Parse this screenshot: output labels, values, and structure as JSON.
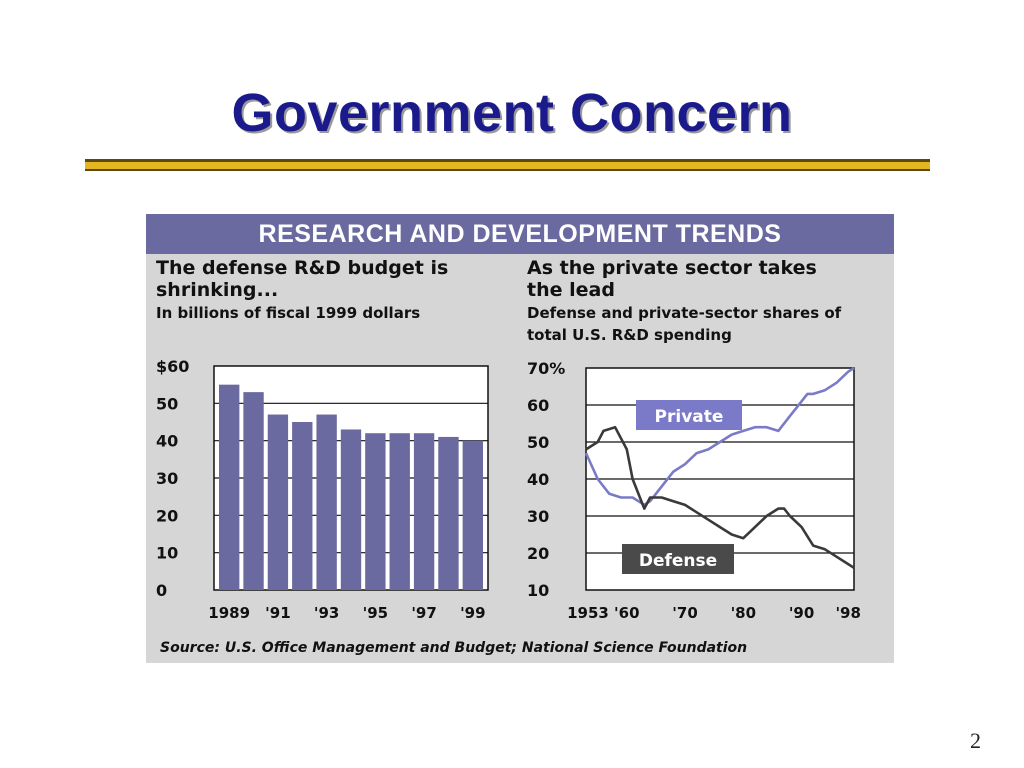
{
  "slide": {
    "title": "Government Concern",
    "page_number": "2"
  },
  "figure": {
    "banner": "RESEARCH AND DEVELOPMENT TRENDS",
    "source": "Source: U.S. Office Management and Budget; National Science Foundation"
  },
  "colors": {
    "title": "#1a1a8c",
    "banner": "#6a6aa0",
    "bars": "#6a6aa0",
    "private": "#7a7ac8",
    "defense": "#3a3a3a",
    "rule_gold": "#e6b622"
  },
  "chart_data": [
    {
      "type": "bar",
      "title": "The defense R&D budget is shrinking...",
      "subtitle": "In billions of fiscal 1999 dollars",
      "categories": [
        "1989",
        "1990",
        "1991",
        "1992",
        "1993",
        "1994",
        "1995",
        "1996",
        "1997",
        "1998",
        "1999"
      ],
      "tick_labels": [
        "1989",
        "'91",
        "'93",
        "'95",
        "'97",
        "'99"
      ],
      "values": [
        55,
        53,
        47,
        45,
        47,
        43,
        42,
        42,
        42,
        41,
        40
      ],
      "yticks": [
        "$60",
        "50",
        "40",
        "30",
        "20",
        "10",
        "0"
      ],
      "ylim": [
        0,
        60
      ],
      "grid": true
    },
    {
      "type": "line",
      "title": "As the private sector takes the lead",
      "subtitle": "Defense and private-sector shares of total U.S. R&D spending",
      "xticks": [
        "1953",
        "'60",
        "'70",
        "'80",
        "'90",
        "'98"
      ],
      "yticks": [
        "70%",
        "60",
        "50",
        "40",
        "30",
        "20",
        "10"
      ],
      "xlim": [
        1953,
        1999
      ],
      "ylim": [
        10,
        70
      ],
      "grid": true,
      "series": [
        {
          "name": "Private",
          "x": [
            1953,
            1955,
            1957,
            1959,
            1961,
            1963,
            1964,
            1966,
            1968,
            1970,
            1972,
            1974,
            1976,
            1978,
            1980,
            1982,
            1984,
            1986,
            1988,
            1990,
            1991,
            1992,
            1994,
            1996,
            1998,
            1999
          ],
          "y": [
            47,
            40,
            36,
            35,
            35,
            33,
            34,
            38,
            42,
            44,
            47,
            48,
            50,
            52,
            53,
            54,
            54,
            53,
            57,
            61,
            63,
            63,
            64,
            66,
            69,
            70
          ]
        },
        {
          "name": "Defense",
          "x": [
            1953,
            1955,
            1956,
            1958,
            1960,
            1961,
            1963,
            1964,
            1966,
            1968,
            1970,
            1972,
            1974,
            1976,
            1978,
            1980,
            1982,
            1984,
            1986,
            1987,
            1988,
            1990,
            1992,
            1994,
            1996,
            1998,
            1999
          ],
          "y": [
            48,
            50,
            53,
            54,
            48,
            40,
            32,
            35,
            35,
            34,
            33,
            31,
            29,
            27,
            25,
            24,
            27,
            30,
            32,
            32,
            30,
            27,
            22,
            21,
            19,
            17,
            16
          ]
        }
      ]
    }
  ]
}
